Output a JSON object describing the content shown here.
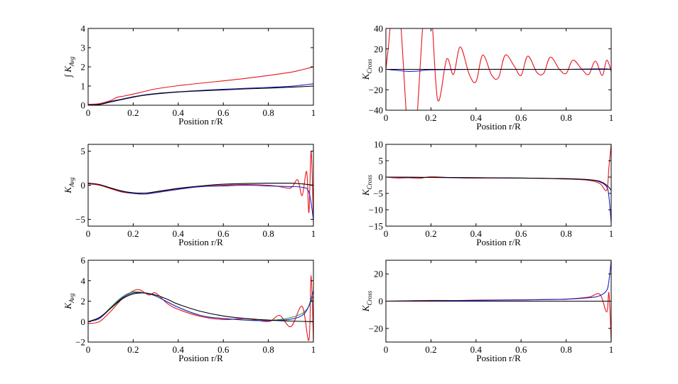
{
  "colors": {
    "red": "#e8141c",
    "blue": "#2222cc",
    "black": "#000000",
    "green": "#2a9a2a",
    "yellow": "#c8b400"
  },
  "chart_data": [
    {
      "type": "line",
      "xlabel": "Position r/R",
      "ylabel": "∫ K_Avg",
      "xlim": [
        0,
        1
      ],
      "ylim": [
        0,
        4
      ],
      "xticks": [
        0,
        0.2,
        0.4,
        0.6,
        0.8,
        1
      ],
      "xtick_labels": [
        "0",
        "0.2",
        "0.4",
        "0.6",
        "0.8",
        "1"
      ],
      "yticks": [
        0,
        1,
        2,
        3,
        4
      ],
      "ytick_labels": [
        "0",
        "1",
        "2",
        "3",
        "4"
      ],
      "grid": false,
      "series": [
        {
          "color": "red",
          "x": [
            0,
            0.05,
            0.1,
            0.13,
            0.16,
            0.2,
            0.25,
            0.3,
            0.4,
            0.5,
            0.6,
            0.7,
            0.8,
            0.9,
            0.95,
            1.0
          ],
          "y": [
            0.05,
            0.08,
            0.25,
            0.42,
            0.48,
            0.58,
            0.72,
            0.85,
            1.02,
            1.15,
            1.27,
            1.4,
            1.55,
            1.72,
            1.85,
            2.0
          ]
        },
        {
          "color": "blue",
          "x": [
            0,
            0.05,
            0.1,
            0.15,
            0.2,
            0.25,
            0.3,
            0.4,
            0.5,
            0.6,
            0.7,
            0.8,
            0.9,
            0.95,
            1.0
          ],
          "y": [
            0.02,
            0.05,
            0.2,
            0.32,
            0.44,
            0.54,
            0.61,
            0.7,
            0.77,
            0.83,
            0.88,
            0.93,
            0.99,
            1.05,
            1.12
          ]
        },
        {
          "color": "black",
          "x": [
            0,
            0.05,
            0.1,
            0.15,
            0.2,
            0.25,
            0.3,
            0.4,
            0.5,
            0.6,
            0.7,
            0.8,
            0.9,
            1.0
          ],
          "y": [
            0.0,
            0.04,
            0.17,
            0.3,
            0.42,
            0.52,
            0.59,
            0.69,
            0.75,
            0.8,
            0.85,
            0.89,
            0.94,
            1.0
          ]
        }
      ]
    },
    {
      "type": "line",
      "xlabel": "Position r/R",
      "ylabel": "K_Cross",
      "xlim": [
        0,
        1
      ],
      "ylim": [
        -40,
        40
      ],
      "xticks": [
        0,
        0.2,
        0.4,
        0.6,
        0.8,
        1
      ],
      "xtick_labels": [
        "0",
        "0.2",
        "0.4",
        "0.6",
        "0.8",
        "1"
      ],
      "yticks": [
        -40,
        -20,
        0,
        20,
        40
      ],
      "ytick_labels": [
        "−40",
        "−20",
        "0",
        "20",
        "40"
      ],
      "grid": false,
      "series": [
        {
          "color": "red",
          "pattern": "damped-oscillation",
          "x": [
            0,
            0.01,
            0.03,
            0.06,
            0.1,
            0.13,
            0.17,
            0.2,
            0.23,
            0.27,
            0.3,
            0.33,
            0.37,
            0.4,
            0.43,
            0.47,
            0.5,
            0.53,
            0.57,
            0.6,
            0.63,
            0.67,
            0.7,
            0.73,
            0.77,
            0.8,
            0.83,
            0.87,
            0.9,
            0.93,
            0.96,
            0.98,
            1.0
          ],
          "y": [
            0,
            20,
            60,
            60,
            -70,
            -70,
            60,
            60,
            -30,
            10,
            -5,
            22,
            -5,
            -12,
            14,
            -6,
            -8,
            14,
            3,
            -6,
            13,
            -3,
            -4,
            12,
            0,
            -4,
            9,
            0,
            -5,
            8,
            -6,
            9,
            -2
          ]
        },
        {
          "color": "blue",
          "x": [
            0,
            0.05,
            0.1,
            0.15,
            0.2,
            0.4,
            0.6,
            0.8,
            0.95,
            1.0
          ],
          "y": [
            0,
            -1,
            -2,
            -1.5,
            -0.5,
            0,
            0,
            0,
            0.5,
            0
          ]
        },
        {
          "color": "black",
          "x": [
            0,
            1
          ],
          "y": [
            0,
            0
          ]
        }
      ]
    },
    {
      "type": "line",
      "xlabel": "Position r/R",
      "ylabel": "K_Avg",
      "xlim": [
        0,
        1
      ],
      "ylim": [
        -6,
        6
      ],
      "xticks": [
        0,
        0.2,
        0.4,
        0.6,
        0.8,
        1
      ],
      "xtick_labels": [
        "0",
        "0.2",
        "0.4",
        "0.6",
        "0.8",
        "1"
      ],
      "yticks": [
        -5,
        0,
        5
      ],
      "ytick_labels": [
        "−5",
        "0",
        "5"
      ],
      "grid": false,
      "series": [
        {
          "color": "red",
          "pattern": "tail-oscillation",
          "x": [
            0,
            0.05,
            0.1,
            0.15,
            0.2,
            0.25,
            0.3,
            0.4,
            0.5,
            0.6,
            0.7,
            0.8,
            0.85,
            0.9,
            0.93,
            0.95,
            0.97,
            0.98,
            0.99,
            1.0
          ],
          "y": [
            0.2,
            0.0,
            -0.5,
            -1.0,
            -1.2,
            -1.3,
            -1.0,
            -0.5,
            -0.2,
            0.0,
            0.1,
            0.0,
            -0.2,
            -0.4,
            0.8,
            -1.5,
            2.0,
            -4.0,
            5.0,
            -5.5
          ]
        },
        {
          "color": "blue",
          "x": [
            0,
            0.05,
            0.1,
            0.15,
            0.2,
            0.25,
            0.3,
            0.4,
            0.5,
            0.6,
            0.7,
            0.8,
            0.9,
            0.95,
            0.98,
            1.0
          ],
          "y": [
            0.3,
            0.1,
            -0.4,
            -0.9,
            -1.2,
            -1.3,
            -1.1,
            -0.6,
            -0.2,
            -0.1,
            0.0,
            -0.1,
            -0.2,
            -0.3,
            -1.0,
            -5.0
          ]
        },
        {
          "color": "black",
          "x": [
            0,
            0.05,
            0.1,
            0.15,
            0.2,
            0.25,
            0.3,
            0.4,
            0.5,
            0.6,
            0.7,
            0.8,
            0.9,
            0.95,
            1.0
          ],
          "y": [
            0.3,
            0.1,
            -0.4,
            -0.85,
            -1.1,
            -1.15,
            -0.95,
            -0.45,
            -0.1,
            0.15,
            0.25,
            0.3,
            0.3,
            0.2,
            0.0
          ]
        }
      ]
    },
    {
      "type": "line",
      "xlabel": "Position r/R",
      "ylabel": "K_Cross",
      "xlim": [
        0,
        1
      ],
      "ylim": [
        -15,
        10
      ],
      "xticks": [
        0,
        0.2,
        0.4,
        0.6,
        0.8,
        1
      ],
      "xtick_labels": [
        "0",
        "0.2",
        "0.4",
        "0.6",
        "0.8",
        "1"
      ],
      "yticks": [
        -15,
        -10,
        -5,
        0,
        5,
        10
      ],
      "ytick_labels": [
        "−15",
        "−10",
        "−5",
        "0",
        "5",
        "10"
      ],
      "grid": false,
      "series": [
        {
          "color": "red",
          "pattern": "tail-oscillation",
          "x": [
            0,
            0.05,
            0.1,
            0.15,
            0.2,
            0.3,
            0.4,
            0.6,
            0.8,
            0.9,
            0.95,
            0.98,
            0.99,
            1.0
          ],
          "y": [
            0,
            -0.3,
            -0.2,
            -0.4,
            0.1,
            -0.2,
            -0.3,
            -0.3,
            -0.6,
            -1.0,
            -2.0,
            -4.0,
            3.0,
            10.0
          ]
        },
        {
          "color": "blue",
          "x": [
            0,
            0.2,
            0.4,
            0.6,
            0.8,
            0.9,
            0.95,
            0.98,
            0.99,
            1.0
          ],
          "y": [
            0,
            -0.1,
            -0.2,
            -0.3,
            -0.5,
            -0.8,
            -1.5,
            -3.0,
            -6.0,
            -14.0
          ]
        },
        {
          "color": "black",
          "x": [
            0,
            0.2,
            0.4,
            0.6,
            0.8,
            0.9,
            0.95,
            0.98,
            1.0
          ],
          "y": [
            0,
            -0.1,
            -0.2,
            -0.3,
            -0.5,
            -0.8,
            -1.3,
            -2.5,
            -4.0
          ]
        }
      ]
    },
    {
      "type": "line",
      "xlabel": "Position r/R",
      "ylabel": "K_Avg",
      "xlim": [
        0,
        1
      ],
      "ylim": [
        -2,
        6
      ],
      "xticks": [
        0,
        0.2,
        0.4,
        0.6,
        0.8,
        1
      ],
      "xtick_labels": [
        "0",
        "0.2",
        "0.4",
        "0.6",
        "0.8",
        "1"
      ],
      "yticks": [
        -2,
        0,
        2,
        4,
        6
      ],
      "ytick_labels": [
        "−2",
        "0",
        "2",
        "4",
        "6"
      ],
      "grid": false,
      "series": [
        {
          "color": "red",
          "pattern": "tail-oscillation",
          "x": [
            0,
            0.05,
            0.1,
            0.15,
            0.2,
            0.23,
            0.27,
            0.3,
            0.35,
            0.4,
            0.5,
            0.6,
            0.7,
            0.8,
            0.85,
            0.9,
            0.95,
            0.98,
            0.99,
            1.0
          ],
          "y": [
            -0.2,
            0.0,
            1.0,
            2.2,
            3.0,
            3.1,
            2.6,
            2.8,
            1.8,
            1.2,
            0.5,
            0.2,
            0.3,
            0.0,
            0.6,
            -0.5,
            1.5,
            -1.8,
            4.5,
            -2.0
          ]
        },
        {
          "color": "green",
          "x": [
            0,
            0.05,
            0.1,
            0.15,
            0.2,
            0.25,
            0.3,
            0.4,
            0.5,
            0.6,
            0.8,
            0.95,
            1.0
          ],
          "y": [
            0,
            0.3,
            1.4,
            2.4,
            2.9,
            2.8,
            2.5,
            1.4,
            0.6,
            0.3,
            0.1,
            0.8,
            2.5
          ]
        },
        {
          "color": "blue",
          "x": [
            0,
            0.05,
            0.1,
            0.15,
            0.2,
            0.25,
            0.3,
            0.4,
            0.5,
            0.6,
            0.8,
            0.95,
            1.0
          ],
          "y": [
            0,
            0.3,
            1.3,
            2.3,
            2.8,
            2.8,
            2.5,
            1.4,
            0.6,
            0.3,
            0.1,
            0.6,
            3.0
          ]
        },
        {
          "color": "black",
          "x": [
            0,
            0.05,
            0.1,
            0.15,
            0.2,
            0.25,
            0.3,
            0.35,
            0.4,
            0.5,
            0.6,
            0.7,
            0.8,
            0.9,
            1.0
          ],
          "y": [
            0,
            0.4,
            1.3,
            2.2,
            2.7,
            2.8,
            2.6,
            2.2,
            1.7,
            1.0,
            0.55,
            0.3,
            0.15,
            0.05,
            0.0
          ]
        }
      ]
    },
    {
      "type": "line",
      "xlabel": "Position r/R",
      "ylabel": "K_Cross",
      "xlim": [
        0,
        1
      ],
      "ylim": [
        -30,
        30
      ],
      "xticks": [
        0,
        0.2,
        0.4,
        0.6,
        0.8,
        1
      ],
      "xtick_labels": [
        "0",
        "0.2",
        "0.4",
        "0.6",
        "0.8",
        "1"
      ],
      "yticks": [
        -20,
        0,
        20
      ],
      "ytick_labels": [
        "−20",
        "0",
        "20"
      ],
      "grid": false,
      "series": [
        {
          "color": "red",
          "pattern": "tail-oscillation",
          "x": [
            0,
            0.1,
            0.2,
            0.3,
            0.4,
            0.5,
            0.6,
            0.7,
            0.8,
            0.9,
            0.95,
            0.98,
            0.99,
            1.0
          ],
          "y": [
            0,
            0.3,
            0.6,
            0.5,
            0.8,
            0.9,
            1.0,
            1.2,
            1.5,
            3.0,
            5.0,
            -8.0,
            6.0,
            -30.0
          ]
        },
        {
          "color": "blue",
          "x": [
            0,
            0.2,
            0.4,
            0.6,
            0.8,
            0.9,
            0.95,
            0.98,
            0.99,
            1.0
          ],
          "y": [
            0,
            0.3,
            0.6,
            0.9,
            1.4,
            2.5,
            4.0,
            8.0,
            15.0,
            30.0
          ]
        },
        {
          "color": "black",
          "x": [
            0,
            1
          ],
          "y": [
            0,
            0
          ]
        }
      ]
    }
  ]
}
